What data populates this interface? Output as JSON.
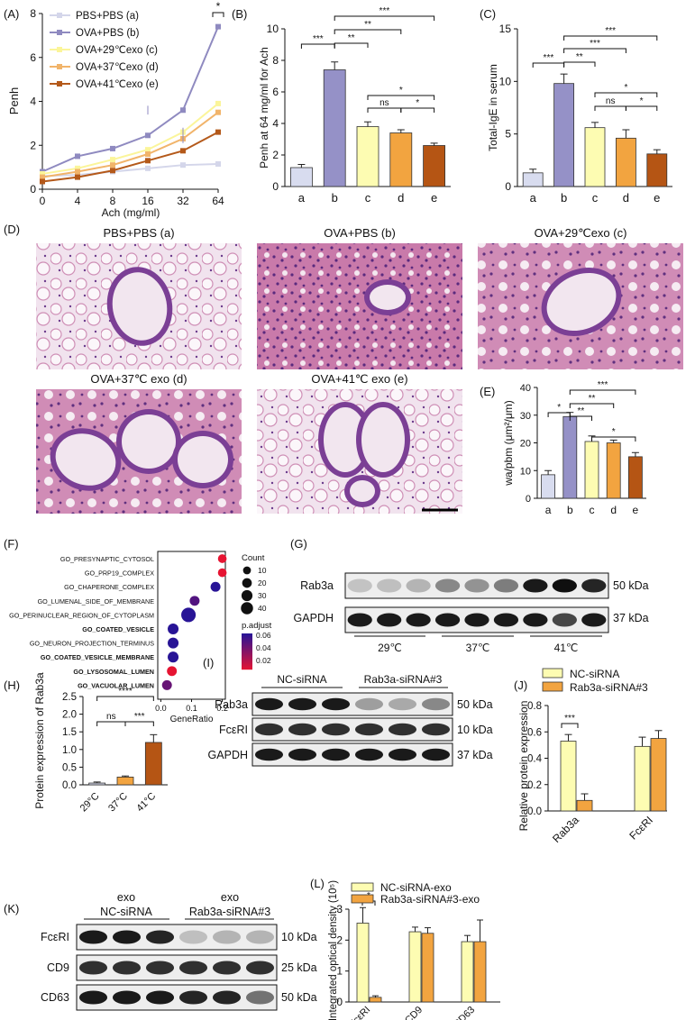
{
  "colors": {
    "a": "#d8dcef",
    "b": "#9591c7",
    "c": "#fdfcb2",
    "d": "#f2a440",
    "e": "#b55514",
    "line_a": "#d4d6ea",
    "line_b": "#8f8ac0",
    "line_c": "#fbf59a",
    "line_d": "#f1b46a",
    "line_e": "#b4591a",
    "nc": "#fdfcb2",
    "kd": "#f2a440",
    "tissue_pink": "#d58bb2",
    "tissue_purple": "#6a3a8a"
  },
  "panel_labels": {
    "A": "(A)",
    "B": "(B)",
    "C": "(C)",
    "D": "(D)",
    "E": "(E)",
    "F": "(F)",
    "G": "(G)",
    "H": "(H)",
    "I": "(I)",
    "J": "(J)",
    "K": "(K)",
    "L": "(L)"
  },
  "sig": {
    "star1": "*",
    "star2": "**",
    "star3": "***",
    "star4": "****",
    "ns": "ns"
  },
  "histology": {
    "titles": [
      "PBS+PBS (a)",
      "OVA+PBS (b)",
      "OVA+29℃exo (c)",
      "OVA+37℃ exo (d)",
      "OVA+41℃ exo (e)"
    ]
  },
  "western_G": {
    "bands": [
      "Rab3a",
      "GAPDH"
    ],
    "kda": [
      "50 kDa",
      "37 kDa"
    ],
    "groups": [
      "29℃",
      "37℃",
      "41℃"
    ],
    "rab3a_intensity": [
      0.18,
      0.2,
      0.25,
      0.45,
      0.4,
      0.5,
      0.95,
      1.0,
      0.9
    ],
    "gapdh_intensity": [
      0.95,
      0.95,
      0.95,
      0.95,
      0.95,
      0.95,
      0.95,
      0.75,
      0.95
    ]
  },
  "western_I": {
    "groups": [
      "NC-siRNA",
      "Rab3a-siRNA#3"
    ],
    "bands": [
      "Rab3a",
      "FcεRI",
      "GAPDH"
    ],
    "kda": [
      "50 kDa",
      "10 kDa",
      "37 kDa"
    ],
    "rab3a_intensity": [
      0.95,
      0.95,
      0.95,
      0.35,
      0.3,
      0.45
    ],
    "fcer_intensity": [
      0.85,
      0.85,
      0.85,
      0.85,
      0.85,
      0.85
    ],
    "gapdh_intensity": [
      0.95,
      0.95,
      0.95,
      0.95,
      0.95,
      0.95
    ]
  },
  "western_K": {
    "group_prefix": [
      "exo",
      "exo"
    ],
    "groups": [
      "NC-siRNA",
      "Rab3a-siRNA#3"
    ],
    "bands": [
      "FcεRI",
      "CD9",
      "CD63"
    ],
    "kda": [
      "10 kDa",
      "25 kDa",
      "50 kDa"
    ],
    "fcer_intensity": [
      0.95,
      0.95,
      0.9,
      0.2,
      0.25,
      0.25
    ],
    "cd9_intensity": [
      0.85,
      0.85,
      0.85,
      0.85,
      0.85,
      0.85
    ],
    "cd63_intensity": [
      0.95,
      0.95,
      0.95,
      0.9,
      0.9,
      0.55
    ]
  },
  "chart_data": [
    {
      "id": "A",
      "type": "line",
      "ylabel": "Penh",
      "xlabel": "Ach (mg/ml)",
      "x": [
        "0",
        "4",
        "8",
        "16",
        "32",
        "64"
      ],
      "ylim": [
        0,
        8
      ],
      "yticks": [
        0,
        2,
        4,
        6,
        8
      ],
      "series": [
        {
          "name": "PBS+PBS (a)",
          "values": [
            0.6,
            0.65,
            0.8,
            0.95,
            1.1,
            1.15
          ]
        },
        {
          "name": "OVA+PBS (b)",
          "values": [
            0.8,
            1.5,
            1.85,
            2.45,
            3.6,
            7.4
          ]
        },
        {
          "name": "OVA+29℃exo (c)",
          "values": [
            0.7,
            0.95,
            1.35,
            1.8,
            2.6,
            3.9
          ]
        },
        {
          "name": "OVA+37℃exo (d)",
          "values": [
            0.55,
            0.8,
            1.1,
            1.6,
            2.3,
            3.5
          ]
        },
        {
          "name": "OVA+41℃exo (e)",
          "values": [
            0.35,
            0.55,
            0.85,
            1.3,
            1.75,
            2.6
          ]
        }
      ],
      "annotations": [
        "*"
      ]
    },
    {
      "id": "B",
      "type": "bar",
      "ylabel": "Penh at 64 mg/ml for Ach",
      "categories": [
        "a",
        "b",
        "c",
        "d",
        "e"
      ],
      "values": [
        1.2,
        7.4,
        3.8,
        3.4,
        2.6
      ],
      "errors": [
        0.2,
        0.5,
        0.3,
        0.2,
        0.15
      ],
      "ylim": [
        0,
        10
      ],
      "yticks": [
        0,
        2,
        4,
        6,
        8,
        10
      ]
    },
    {
      "id": "C",
      "type": "bar",
      "ylabel": "Total-IgE in serum",
      "categories": [
        "a",
        "b",
        "c",
        "d",
        "e"
      ],
      "values": [
        1.3,
        9.8,
        5.6,
        4.6,
        3.1
      ],
      "errors": [
        0.35,
        0.9,
        0.5,
        0.8,
        0.4
      ],
      "ylim": [
        0,
        15
      ],
      "yticks": [
        0,
        5,
        10,
        15
      ]
    },
    {
      "id": "E",
      "type": "bar",
      "ylabel": "wa/pbm (μm²/μm)",
      "categories": [
        "a",
        "b",
        "c",
        "d",
        "e"
      ],
      "values": [
        8.5,
        29.5,
        20.5,
        20,
        15
      ],
      "errors": [
        1.5,
        1.5,
        2,
        1,
        1.5
      ],
      "ylim": [
        0,
        40
      ],
      "yticks": [
        0,
        10,
        20,
        30,
        40
      ]
    },
    {
      "id": "F",
      "type": "scatter",
      "xlabel": "GeneRatio",
      "categories": [
        "GO_PRESYNAPTIC_CYTOSOL",
        "GO_PRP19_COMPLEX",
        "GO_CHAPERONE_COMPLEX",
        "GO_LUMENAL_SIDE_OF_MEMBRANE",
        "GO_PERINUCLEAR_REGION_OF_CYTOPLASM",
        "GO_COATED_VESICLE",
        "GO_NEURON_PROJECTION_TERMINUS",
        "GO_COATED_VESICLE_MEMBRANE",
        "GO_LYSOSOMAL_LUMEN",
        "GO_VACUOLAR_LUMEN"
      ],
      "bold": [
        false,
        false,
        false,
        false,
        false,
        true,
        false,
        true,
        true,
        true
      ],
      "x": [
        0.2,
        0.2,
        0.178,
        0.11,
        0.09,
        0.04,
        0.04,
        0.04,
        0.036,
        0.02
      ],
      "count": [
        10,
        10,
        15,
        15,
        45,
        20,
        20,
        20,
        15,
        15
      ],
      "padjust": [
        0.015,
        0.015,
        0.06,
        0.05,
        0.06,
        0.06,
        0.06,
        0.06,
        0.015,
        0.045
      ],
      "xlim": [
        -0.01,
        0.21
      ],
      "xticks": [
        0.0,
        0.1,
        0.2
      ],
      "legend_count": {
        "title": "Count",
        "values": [
          10,
          20,
          30,
          40
        ]
      },
      "legend_padjust": {
        "title": "p.adjust",
        "values": [
          0.06,
          0.04,
          0.02
        ]
      }
    },
    {
      "id": "H",
      "type": "bar",
      "ylabel": "Protein expression of Rab3a",
      "categories": [
        "29°C",
        "37°C",
        "41°C"
      ],
      "values": [
        0.05,
        0.22,
        1.2
      ],
      "errors": [
        0.03,
        0.03,
        0.22
      ],
      "ylim": [
        0,
        2.5
      ],
      "yticks": [
        0.0,
        0.5,
        1.0,
        1.5,
        2.0,
        2.5
      ]
    },
    {
      "id": "J",
      "type": "bar",
      "ylabel": "Relative protein expression",
      "categories": [
        "Rab3a",
        "FcεRI"
      ],
      "series": [
        {
          "name": "NC-siRNA",
          "values": [
            0.53,
            0.49
          ],
          "errors": [
            0.05,
            0.07
          ]
        },
        {
          "name": "Rab3a-siRNA#3",
          "values": [
            0.08,
            0.55
          ],
          "errors": [
            0.05,
            0.06
          ]
        }
      ],
      "ylim": [
        0,
        0.8
      ],
      "yticks": [
        0.0,
        0.2,
        0.4,
        0.6,
        0.8
      ]
    },
    {
      "id": "L",
      "type": "bar",
      "ylabel": "Integrated optical density (10⁵)",
      "categories": [
        "FcεRI",
        "CD9",
        "CD63"
      ],
      "series": [
        {
          "name": "NC-siRNA-exo",
          "values": [
            2.55,
            2.27,
            1.95
          ],
          "errors": [
            0.5,
            0.15,
            0.2
          ]
        },
        {
          "name": "Rab3a-siRNA#3-exo",
          "values": [
            0.15,
            2.22,
            1.95
          ],
          "errors": [
            0.05,
            0.18,
            0.7
          ]
        }
      ],
      "ylim": [
        0,
        3
      ],
      "yticks": [
        0,
        1,
        2,
        3
      ]
    }
  ]
}
